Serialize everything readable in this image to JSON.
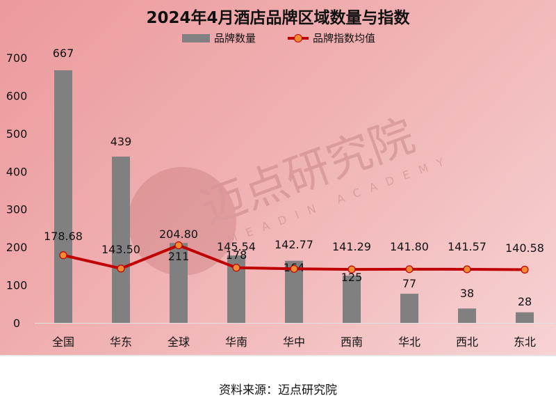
{
  "title": "2024年4月酒店品牌区域数量与指数",
  "legend": {
    "bar_label": "品牌数量",
    "line_label": "品牌指数均值"
  },
  "source": "资料来源：迈点研究院",
  "watermark": {
    "cn": "迈点研究院",
    "en": "MEADIN ACADEMY"
  },
  "colors": {
    "bar": "#808080",
    "line": "#c00000",
    "marker": "#f28c33"
  },
  "chart_data": {
    "type": "bar+line",
    "title": "2024年4月酒店品牌区域数量与指数",
    "categories": [
      "全国",
      "华东",
      "全球",
      "华南",
      "华中",
      "西南",
      "华北",
      "西北",
      "东北"
    ],
    "series": [
      {
        "name": "品牌数量",
        "type": "bar",
        "values": [
          667,
          439,
          211,
          178,
          164,
          125,
          77,
          38,
          28
        ]
      },
      {
        "name": "品牌指数均值",
        "type": "line",
        "values": [
          178.68,
          143.5,
          204.8,
          145.54,
          142.77,
          141.29,
          141.8,
          141.57,
          140.58
        ]
      }
    ],
    "yticks": [
      0,
      100,
      200,
      300,
      400,
      500,
      600,
      700
    ],
    "ylim": [
      0,
      700
    ],
    "xlabel": "",
    "ylabel": "",
    "grid": false,
    "legend_position": "top"
  }
}
